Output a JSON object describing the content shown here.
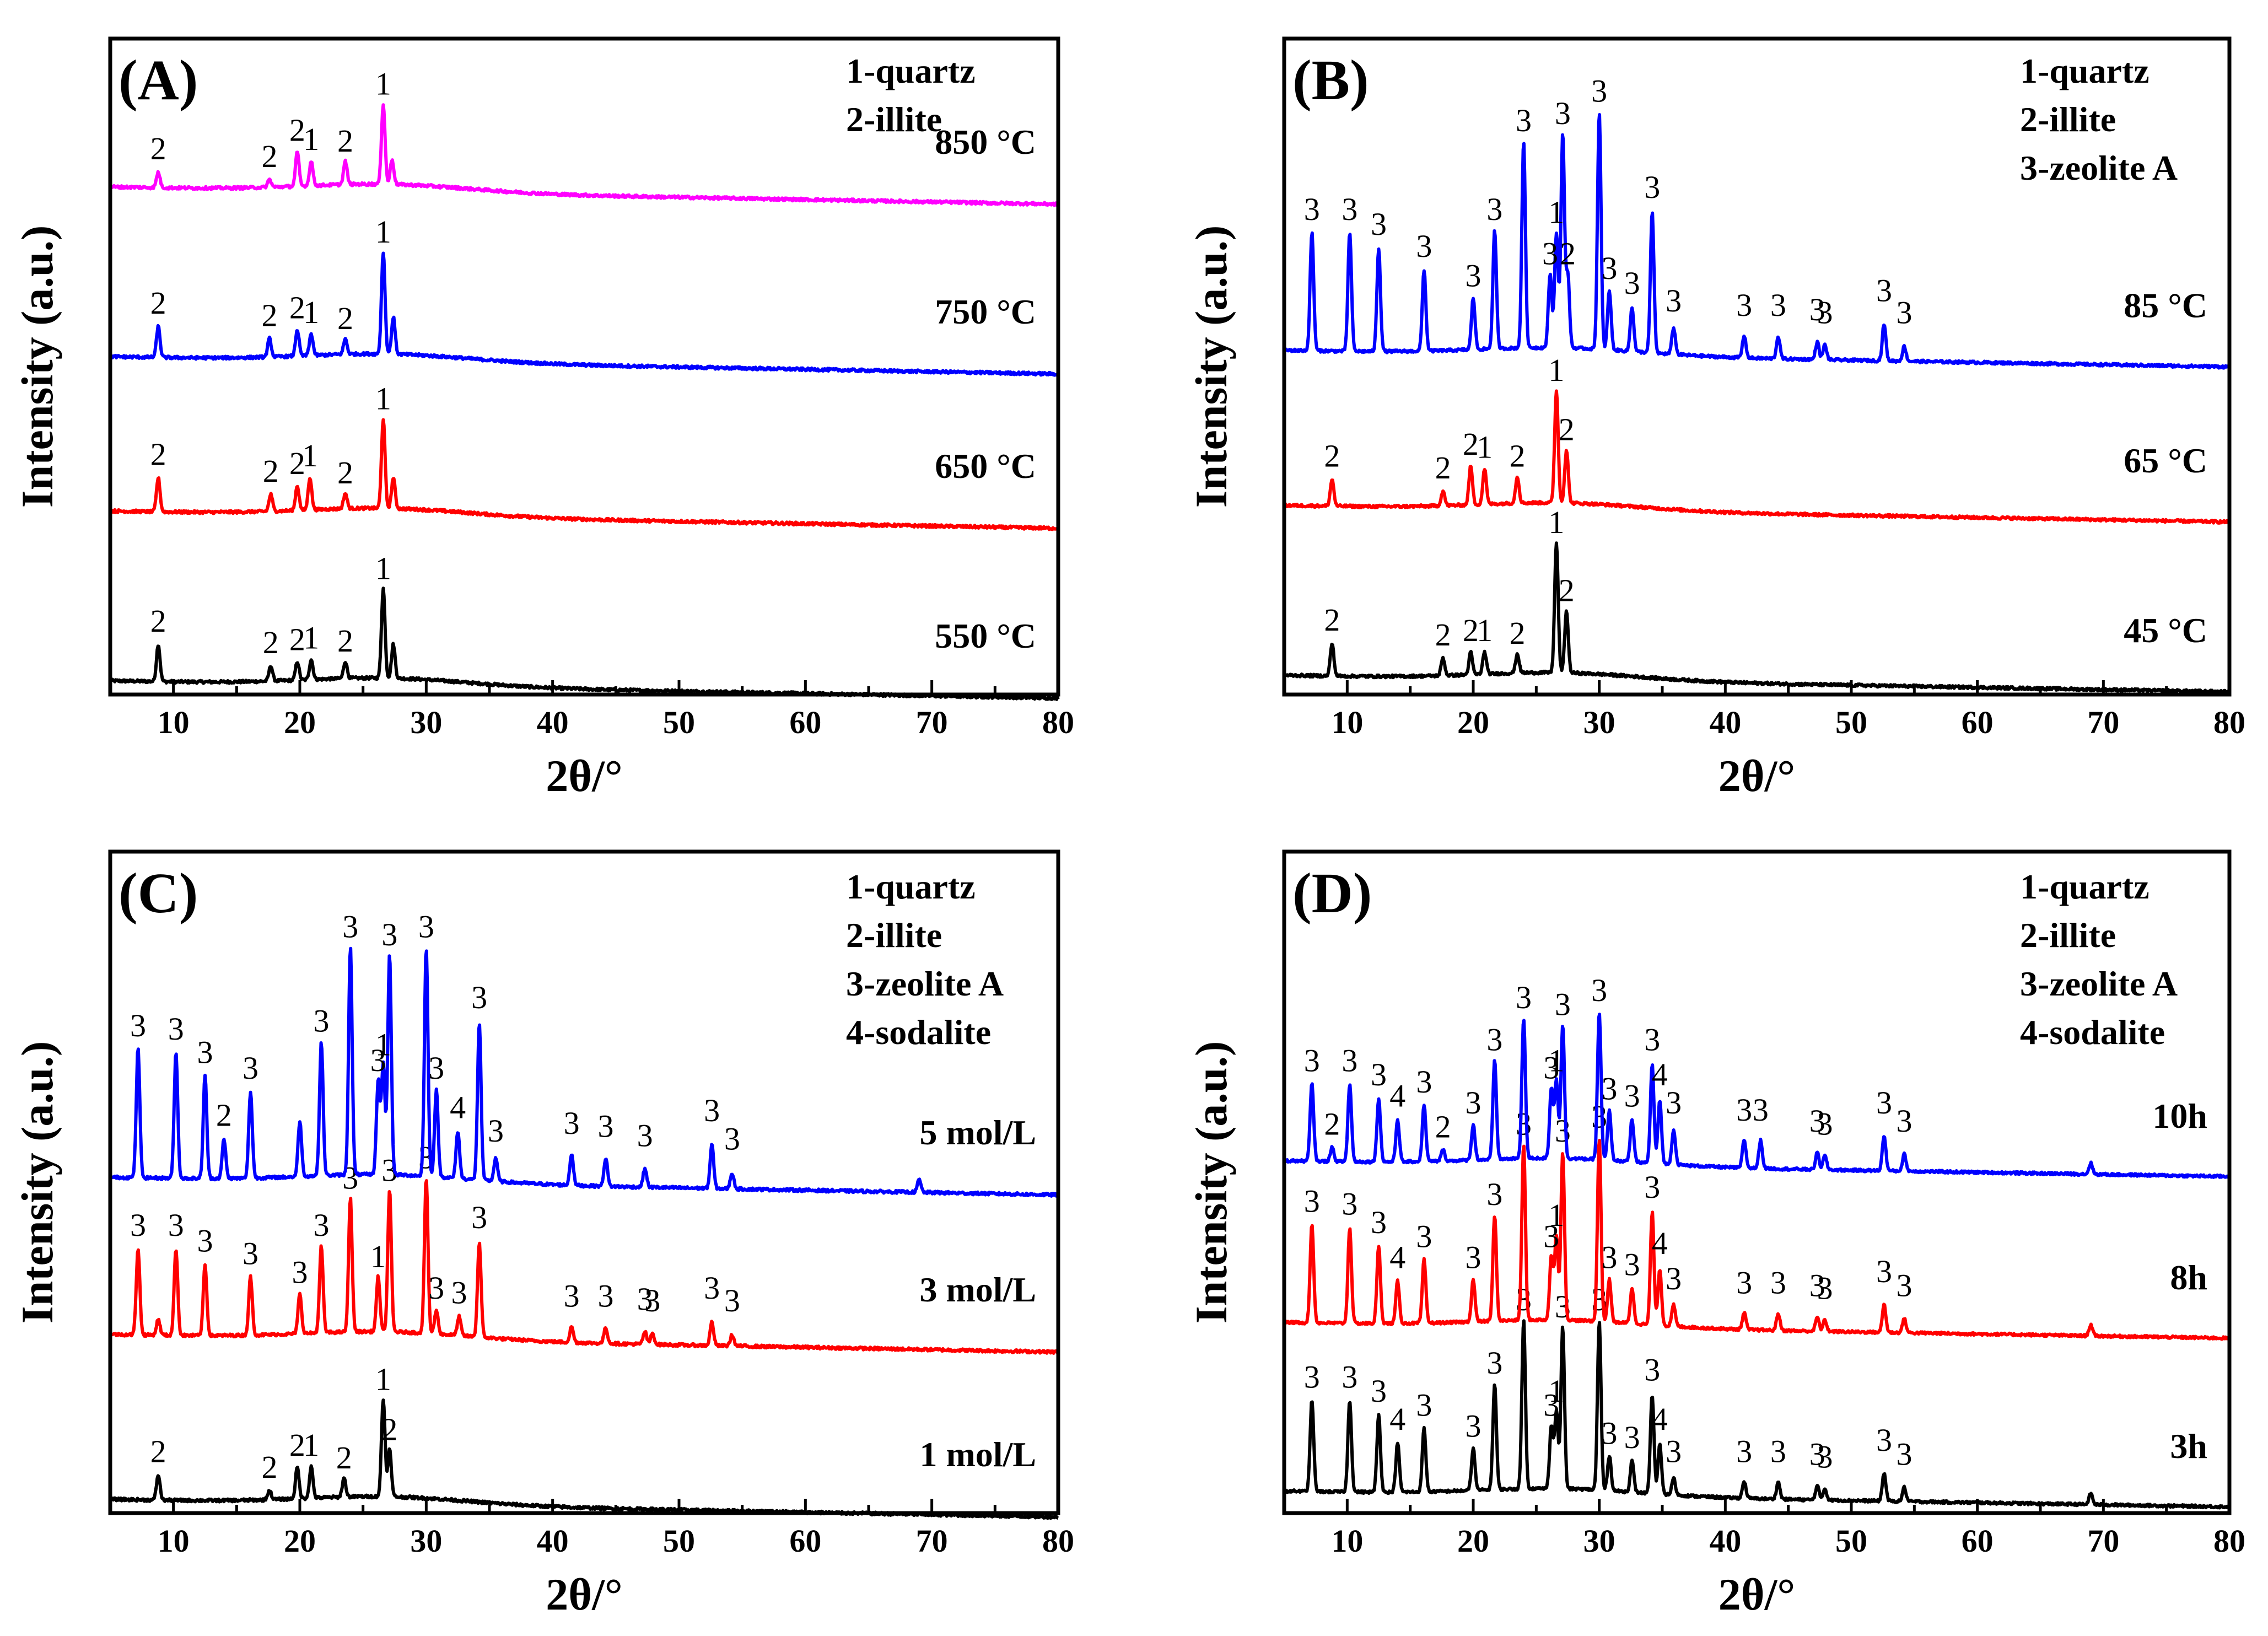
{
  "chart_data": [
    {
      "id": "A",
      "type": "line",
      "panel_label": "(A)",
      "xlabel": "2θ/°",
      "ylabel": "Intensity (a.u.)",
      "xlim": [
        5,
        80
      ],
      "xticks": [
        "10",
        "20",
        "30",
        "40",
        "50",
        "60",
        "70",
        "80"
      ],
      "legend": [
        "1-quartz",
        "2-illite"
      ],
      "series": [
        {
          "name": "550 °C",
          "color": "#000000",
          "baseline": 0.0,
          "peaks": [
            [
              8.8,
              0.24,
              "2"
            ],
            [
              17.7,
              0.1,
              "2"
            ],
            [
              19.8,
              0.12,
              "2"
            ],
            [
              20.9,
              0.13,
              "1"
            ],
            [
              23.6,
              0.11,
              "2"
            ],
            [
              26.6,
              0.58,
              "1"
            ],
            [
              27.4,
              0.22,
              ""
            ]
          ]
        },
        {
          "name": "650 °C",
          "color": "#ff0000",
          "baseline": 1.1,
          "peaks": [
            [
              8.8,
              0.22,
              "2"
            ],
            [
              17.7,
              0.11,
              "2"
            ],
            [
              19.8,
              0.16,
              "2"
            ],
            [
              20.8,
              0.21,
              "1"
            ],
            [
              23.6,
              0.1,
              "2"
            ],
            [
              26.6,
              0.58,
              "1"
            ],
            [
              27.4,
              0.2,
              ""
            ]
          ]
        },
        {
          "name": "750 °C",
          "color": "#0000ff",
          "baseline": 2.1,
          "peaks": [
            [
              8.8,
              0.2,
              "2"
            ],
            [
              17.6,
              0.12,
              "2"
            ],
            [
              19.8,
              0.17,
              "2"
            ],
            [
              20.9,
              0.14,
              "1"
            ],
            [
              23.6,
              0.1,
              "2"
            ],
            [
              26.6,
              0.66,
              "1"
            ],
            [
              27.4,
              0.24,
              ""
            ]
          ]
        },
        {
          "name": "850 °C",
          "color": "#ff00ff",
          "baseline": 3.2,
          "peaks": [
            [
              8.8,
              0.1,
              "2"
            ],
            [
              17.6,
              0.05,
              "2"
            ],
            [
              19.8,
              0.22,
              "2"
            ],
            [
              20.9,
              0.16,
              "1"
            ],
            [
              23.6,
              0.15,
              "2"
            ],
            [
              26.6,
              0.52,
              "1"
            ],
            [
              27.3,
              0.16,
              ""
            ]
          ]
        }
      ]
    },
    {
      "id": "B",
      "type": "line",
      "panel_label": "(B)",
      "xlabel": "2θ/°",
      "ylabel": "Intensity (a.u.)",
      "xlim": [
        5,
        80
      ],
      "xticks": [
        "10",
        "20",
        "30",
        "40",
        "50",
        "60",
        "70",
        "80"
      ],
      "legend": [
        "1-quartz",
        "2-illite",
        "3-zeolite A"
      ],
      "series": [
        {
          "name": "45 °C",
          "color": "#000000",
          "baseline": 0.0,
          "peaks": [
            [
              8.8,
              0.22,
              "2"
            ],
            [
              17.6,
              0.12,
              "2"
            ],
            [
              19.8,
              0.15,
              "2"
            ],
            [
              20.9,
              0.15,
              "1"
            ],
            [
              23.5,
              0.13,
              "2"
            ],
            [
              26.6,
              0.88,
              "1"
            ],
            [
              27.4,
              0.42,
              "2"
            ]
          ]
        },
        {
          "name": "65 °C",
          "color": "#ff0000",
          "baseline": 1.15,
          "peaks": [
            [
              8.8,
              0.18,
              "2"
            ],
            [
              17.6,
              0.1,
              "2"
            ],
            [
              19.8,
              0.26,
              "2"
            ],
            [
              20.9,
              0.24,
              "1"
            ],
            [
              23.5,
              0.18,
              "2"
            ],
            [
              26.6,
              0.76,
              "1"
            ],
            [
              27.4,
              0.36,
              "2"
            ]
          ]
        },
        {
          "name": "85 °C",
          "color": "#0000ff",
          "baseline": 2.2,
          "peaks": [
            [
              7.2,
              0.8,
              "3"
            ],
            [
              10.2,
              0.8,
              "3"
            ],
            [
              12.5,
              0.7,
              "3"
            ],
            [
              16.1,
              0.55,
              "3"
            ],
            [
              20.0,
              0.35,
              "3"
            ],
            [
              21.7,
              0.8,
              "3"
            ],
            [
              24.0,
              1.4,
              "3"
            ],
            [
              26.1,
              0.5,
              "3"
            ],
            [
              26.6,
              0.78,
              "1"
            ],
            [
              27.1,
              1.45,
              "3"
            ],
            [
              27.5,
              0.5,
              "2"
            ],
            [
              30.0,
              1.6,
              "3"
            ],
            [
              30.8,
              0.4,
              "3"
            ],
            [
              32.6,
              0.3,
              "3"
            ],
            [
              34.2,
              0.95,
              "3"
            ],
            [
              35.9,
              0.18,
              "3"
            ],
            [
              41.5,
              0.15,
              "3"
            ],
            [
              44.2,
              0.15,
              "3"
            ],
            [
              47.3,
              0.12,
              "3"
            ],
            [
              47.9,
              0.1,
              "3"
            ],
            [
              52.6,
              0.25,
              "3"
            ],
            [
              54.2,
              0.1,
              "3"
            ]
          ]
        }
      ]
    },
    {
      "id": "C",
      "type": "line",
      "panel_label": "(C)",
      "xlabel": "2θ/°",
      "ylabel": "Intensity (a.u.)",
      "xlim": [
        5,
        80
      ],
      "xticks": [
        "10",
        "20",
        "30",
        "40",
        "50",
        "60",
        "70",
        "80"
      ],
      "legend": [
        "1-quartz",
        "2-illite",
        "3-zeolite A",
        "4-sodalite"
      ],
      "series": [
        {
          "name": "1 mol/L",
          "color": "#000000",
          "baseline": 0.0,
          "peaks": [
            [
              8.8,
              0.16,
              "2"
            ],
            [
              17.6,
              0.06,
              "2"
            ],
            [
              19.8,
              0.2,
              "2"
            ],
            [
              20.9,
              0.2,
              "1"
            ],
            [
              23.5,
              0.12,
              "2"
            ],
            [
              26.6,
              0.62,
              "1"
            ],
            [
              27.1,
              0.3,
              "2"
            ]
          ]
        },
        {
          "name": "3 mol/L",
          "color": "#ff0000",
          "baseline": 1.05,
          "peaks": [
            [
              7.2,
              0.55,
              "3"
            ],
            [
              8.8,
              0.1,
              ""
            ],
            [
              10.2,
              0.55,
              "3"
            ],
            [
              12.5,
              0.45,
              "3"
            ],
            [
              16.1,
              0.37,
              "3"
            ],
            [
              20.0,
              0.25,
              "3"
            ],
            [
              21.7,
              0.55,
              "3"
            ],
            [
              24.0,
              0.85,
              "3"
            ],
            [
              26.2,
              0.35,
              "1"
            ],
            [
              27.1,
              0.9,
              "3"
            ],
            [
              30.0,
              0.98,
              "3"
            ],
            [
              30.8,
              0.15,
              "3"
            ],
            [
              32.6,
              0.12,
              "3"
            ],
            [
              34.2,
              0.6,
              "3"
            ],
            [
              41.5,
              0.1,
              "3"
            ],
            [
              44.2,
              0.1,
              "3"
            ],
            [
              47.3,
              0.08,
              "3"
            ],
            [
              47.9,
              0.07,
              "3"
            ],
            [
              52.6,
              0.15,
              "3"
            ],
            [
              54.2,
              0.07,
              "3"
            ]
          ]
        },
        {
          "name": "5 mol/L",
          "color": "#0000ff",
          "baseline": 2.05,
          "peaks": [
            [
              7.2,
              0.82,
              "3"
            ],
            [
              10.2,
              0.8,
              "3"
            ],
            [
              12.5,
              0.65,
              "3"
            ],
            [
              14.0,
              0.25,
              "2"
            ],
            [
              16.1,
              0.55,
              "3"
            ],
            [
              20.0,
              0.35,
              ""
            ],
            [
              21.7,
              0.85,
              "3"
            ],
            [
              24.0,
              1.45,
              "3"
            ],
            [
              26.2,
              0.6,
              "3"
            ],
            [
              26.6,
              0.7,
              "1"
            ],
            [
              27.1,
              1.4,
              "3"
            ],
            [
              30.0,
              1.45,
              "3"
            ],
            [
              30.8,
              0.55,
              "3"
            ],
            [
              32.5,
              0.3,
              "4"
            ],
            [
              34.2,
              1.0,
              "3"
            ],
            [
              35.5,
              0.15,
              "3"
            ],
            [
              41.5,
              0.2,
              "3"
            ],
            [
              44.2,
              0.18,
              "3"
            ],
            [
              47.3,
              0.12,
              "3"
            ],
            [
              52.6,
              0.28,
              "3"
            ],
            [
              54.2,
              0.1,
              "3"
            ],
            [
              69.0,
              0.08,
              ""
            ]
          ]
        }
      ]
    },
    {
      "id": "D",
      "type": "line",
      "panel_label": "(D)",
      "xlabel": "2θ/°",
      "ylabel": "Intensity (a.u.)",
      "xlim": [
        5,
        80
      ],
      "xticks": [
        "10",
        "20",
        "30",
        "40",
        "50",
        "60",
        "70",
        "80"
      ],
      "legend": [
        "1-quartz",
        "2-illite",
        "3-zeolite A",
        "4-sodalite"
      ],
      "series": [
        {
          "name": "3h",
          "color": "#000000",
          "baseline": 0.0,
          "peaks": [
            [
              7.2,
              0.65,
              "3"
            ],
            [
              10.2,
              0.65,
              "3"
            ],
            [
              12.5,
              0.55,
              "3"
            ],
            [
              14.0,
              0.35,
              "4"
            ],
            [
              16.1,
              0.45,
              "3"
            ],
            [
              20.0,
              0.3,
              "3"
            ],
            [
              21.7,
              0.75,
              "3"
            ],
            [
              24.0,
              1.2,
              "3"
            ],
            [
              26.2,
              0.45,
              "3"
            ],
            [
              26.6,
              0.55,
              "1"
            ],
            [
              27.1,
              1.15,
              "3"
            ],
            [
              30.0,
              1.2,
              "3"
            ],
            [
              30.8,
              0.25,
              "3"
            ],
            [
              32.6,
              0.22,
              "3"
            ],
            [
              34.2,
              0.7,
              "3"
            ],
            [
              34.8,
              0.35,
              "4"
            ],
            [
              35.9,
              0.12,
              "3"
            ],
            [
              41.5,
              0.12,
              "3"
            ],
            [
              44.2,
              0.12,
              "3"
            ],
            [
              47.3,
              0.1,
              "3"
            ],
            [
              47.9,
              0.08,
              "3"
            ],
            [
              52.6,
              0.2,
              "3"
            ],
            [
              54.2,
              0.1,
              "3"
            ],
            [
              69.0,
              0.08,
              ""
            ]
          ]
        },
        {
          "name": "8h",
          "color": "#ff0000",
          "baseline": 1.2,
          "peaks": [
            [
              7.2,
              0.7,
              "3"
            ],
            [
              10.2,
              0.68,
              "3"
            ],
            [
              12.5,
              0.55,
              "3"
            ],
            [
              14.0,
              0.3,
              "4"
            ],
            [
              16.1,
              0.45,
              "3"
            ],
            [
              20.0,
              0.3,
              "3"
            ],
            [
              21.7,
              0.75,
              "3"
            ],
            [
              24.0,
              1.25,
              "3"
            ],
            [
              26.2,
              0.45,
              "3"
            ],
            [
              26.6,
              0.6,
              "1"
            ],
            [
              27.1,
              1.2,
              "3"
            ],
            [
              30.0,
              1.3,
              "3"
            ],
            [
              30.8,
              0.3,
              "3"
            ],
            [
              32.6,
              0.25,
              "3"
            ],
            [
              34.2,
              0.8,
              "3"
            ],
            [
              34.8,
              0.4,
              "4"
            ],
            [
              35.9,
              0.15,
              "3"
            ],
            [
              41.5,
              0.12,
              "3"
            ],
            [
              44.2,
              0.12,
              "3"
            ],
            [
              47.3,
              0.1,
              "3"
            ],
            [
              47.9,
              0.08,
              "3"
            ],
            [
              52.6,
              0.2,
              "3"
            ],
            [
              54.2,
              0.1,
              "3"
            ],
            [
              69.0,
              0.08,
              ""
            ]
          ]
        },
        {
          "name": "10h",
          "color": "#0000ff",
          "baseline": 2.35,
          "peaks": [
            [
              7.2,
              0.55,
              "3"
            ],
            [
              8.8,
              0.1,
              "2"
            ],
            [
              10.2,
              0.55,
              "3"
            ],
            [
              12.5,
              0.45,
              "3"
            ],
            [
              14.0,
              0.3,
              "4"
            ],
            [
              16.1,
              0.4,
              "3"
            ],
            [
              17.6,
              0.08,
              "2"
            ],
            [
              20.0,
              0.25,
              "3"
            ],
            [
              21.7,
              0.7,
              "3"
            ],
            [
              24.0,
              1.0,
              "3"
            ],
            [
              26.2,
              0.5,
              "3"
            ],
            [
              26.6,
              0.55,
              "1"
            ],
            [
              27.1,
              0.95,
              "3"
            ],
            [
              30.0,
              1.05,
              "3"
            ],
            [
              30.8,
              0.35,
              "3"
            ],
            [
              32.6,
              0.3,
              "3"
            ],
            [
              34.2,
              0.7,
              "3"
            ],
            [
              34.8,
              0.45,
              "4"
            ],
            [
              35.9,
              0.25,
              "3"
            ],
            [
              41.5,
              0.2,
              "3"
            ],
            [
              42.8,
              0.2,
              "3"
            ],
            [
              47.3,
              0.12,
              "3"
            ],
            [
              47.9,
              0.1,
              "3"
            ],
            [
              52.6,
              0.25,
              "3"
            ],
            [
              54.2,
              0.12,
              "3"
            ],
            [
              69.0,
              0.08,
              ""
            ]
          ]
        }
      ]
    }
  ]
}
